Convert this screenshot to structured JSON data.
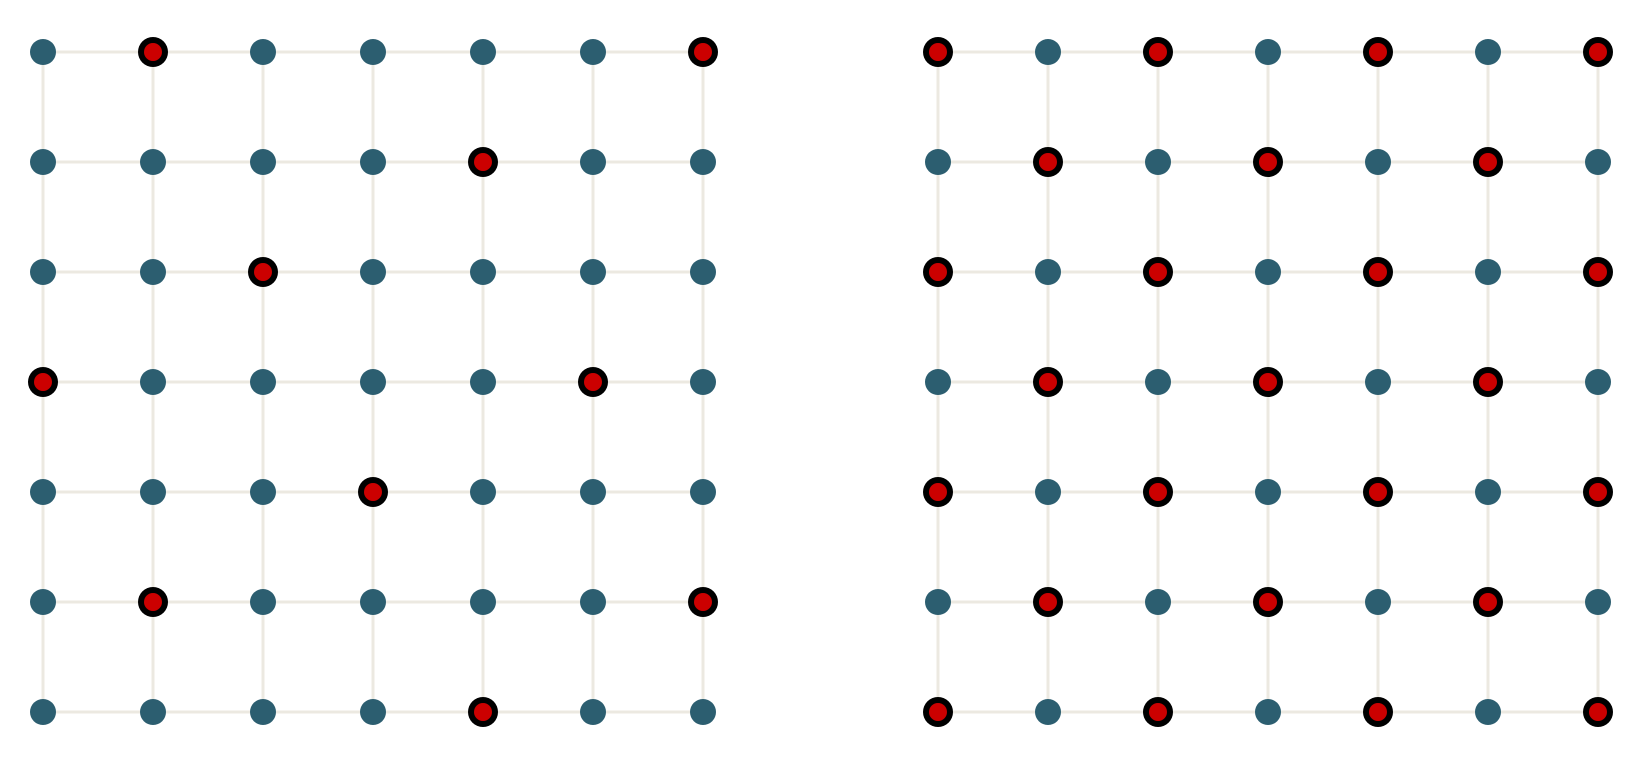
{
  "colors": {
    "background": "#ffffff",
    "grid_line": "#ece9e1",
    "node": "#2c5e70",
    "marked_node": "#cc0000",
    "marked_ring": "#000000"
  },
  "grids": [
    {
      "name": "left-grid",
      "rows": 7,
      "cols": 7,
      "marked": [
        [
          0,
          1
        ],
        [
          0,
          6
        ],
        [
          1,
          4
        ],
        [
          2,
          2
        ],
        [
          3,
          0
        ],
        [
          3,
          5
        ],
        [
          4,
          3
        ],
        [
          5,
          1
        ],
        [
          5,
          6
        ],
        [
          6,
          4
        ]
      ]
    },
    {
      "name": "right-grid",
      "rows": 7,
      "cols": 7,
      "marked": [
        [
          0,
          0
        ],
        [
          0,
          2
        ],
        [
          0,
          4
        ],
        [
          0,
          6
        ],
        [
          1,
          1
        ],
        [
          1,
          3
        ],
        [
          1,
          5
        ],
        [
          2,
          0
        ],
        [
          2,
          2
        ],
        [
          2,
          4
        ],
        [
          2,
          6
        ],
        [
          3,
          1
        ],
        [
          3,
          3
        ],
        [
          3,
          5
        ],
        [
          4,
          0
        ],
        [
          4,
          2
        ],
        [
          4,
          4
        ],
        [
          4,
          6
        ],
        [
          5,
          1
        ],
        [
          5,
          3
        ],
        [
          5,
          5
        ],
        [
          6,
          0
        ],
        [
          6,
          2
        ],
        [
          6,
          4
        ],
        [
          6,
          6
        ]
      ]
    }
  ]
}
